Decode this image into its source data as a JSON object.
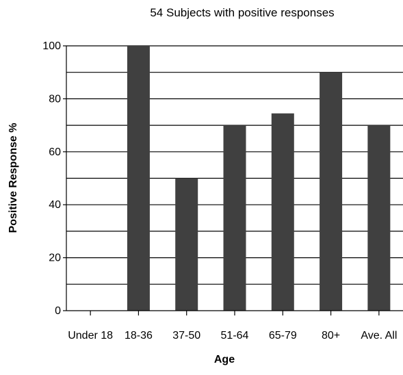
{
  "chart_data": {
    "type": "bar",
    "title": "54 Subjects with positive responses",
    "xlabel": "Age",
    "ylabel": "Positive Response %",
    "categories": [
      "Under 18",
      "18-36",
      "37-50",
      "51-64",
      "65-79",
      "80+",
      "Ave. All"
    ],
    "values": [
      0,
      100,
      50,
      70,
      74.5,
      90,
      70
    ],
    "ylim": [
      0,
      100
    ],
    "yticks": [
      "0",
      "20",
      "40",
      "60",
      "80",
      "100"
    ],
    "grid": true,
    "bar_color": "#404040"
  }
}
